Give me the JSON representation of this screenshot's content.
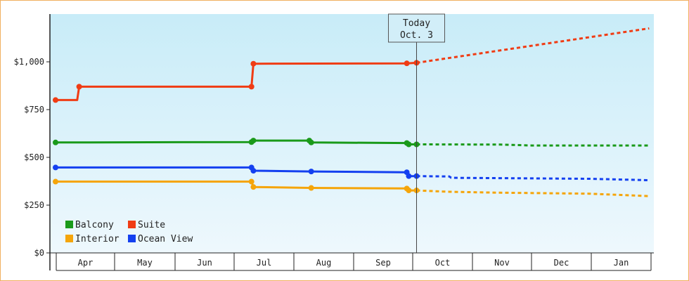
{
  "chart_data": {
    "type": "line",
    "x_unit": "date",
    "ylim": [
      0,
      1250
    ],
    "y_ticks": [
      {
        "value": 0,
        "label": "$0"
      },
      {
        "value": 250,
        "label": "$250"
      },
      {
        "value": 500,
        "label": "$500"
      },
      {
        "value": 750,
        "label": "$750"
      },
      {
        "value": 1000,
        "label": "$1,000"
      }
    ],
    "x_months": [
      "Apr",
      "May",
      "Jun",
      "Jul",
      "Aug",
      "Sep",
      "Oct",
      "Nov",
      "Dec",
      "Jan"
    ],
    "annotation": {
      "line1": "Today",
      "line2": "Oct. 3",
      "x": "Oct 3"
    },
    "legend": {
      "placement": "bottom-left"
    },
    "colors": {
      "Balcony": "#1a9a1a",
      "Suite": "#f03c14",
      "Interior": "#f5a50a",
      "Ocean View": "#1440f0",
      "plot_bg_top": "#c8ecf8",
      "plot_bg_bottom": "#eef8fd"
    },
    "series": [
      {
        "name": "Suite",
        "actual": [
          [
            "Apr 1",
            800
          ],
          [
            "Apr 12",
            800
          ],
          [
            "Apr 13",
            870
          ],
          [
            "Jul 10",
            870
          ],
          [
            "Jul 11",
            990
          ],
          [
            "Sep 28",
            992
          ],
          [
            "Oct 3",
            995
          ]
        ],
        "markers": [
          "Apr 1",
          "Apr 13",
          "Jul 10",
          "Jul 11",
          "Sep 28",
          "Oct 3"
        ],
        "forecast": [
          [
            "Oct 3",
            995
          ],
          [
            "Jan 31",
            1175
          ]
        ]
      },
      {
        "name": "Balcony",
        "actual": [
          [
            "Apr 1",
            578
          ],
          [
            "Jul 10",
            580
          ],
          [
            "Jul 11",
            588
          ],
          [
            "Aug 9",
            588
          ],
          [
            "Aug 10",
            578
          ],
          [
            "Sep 28",
            575
          ],
          [
            "Sep 29",
            568
          ],
          [
            "Oct 3",
            568
          ]
        ],
        "markers": [
          "Apr 1",
          "Jul 10",
          "Jul 11",
          "Aug 9",
          "Aug 10",
          "Sep 28",
          "Sep 29",
          "Oct 3"
        ],
        "forecast": [
          [
            "Oct 3",
            568
          ],
          [
            "Nov 15",
            567
          ],
          [
            "Dec 1",
            562
          ],
          [
            "Jan 31",
            562
          ]
        ]
      },
      {
        "name": "Ocean View",
        "actual": [
          [
            "Apr 1",
            447
          ],
          [
            "Jul 10",
            447
          ],
          [
            "Jul 11",
            430
          ],
          [
            "Aug 10",
            426
          ],
          [
            "Sep 28",
            422
          ],
          [
            "Sep 29",
            402
          ],
          [
            "Oct 3",
            402
          ]
        ],
        "markers": [
          "Apr 1",
          "Jul 10",
          "Jul 11",
          "Aug 10",
          "Sep 28",
          "Sep 29",
          "Oct 3"
        ],
        "forecast": [
          [
            "Oct 3",
            402
          ],
          [
            "Oct 20",
            400
          ],
          [
            "Oct 21",
            393
          ],
          [
            "Dec 31",
            388
          ],
          [
            "Jan 20",
            383
          ],
          [
            "Jan 31",
            380
          ]
        ]
      },
      {
        "name": "Interior",
        "actual": [
          [
            "Apr 1",
            373
          ],
          [
            "Jul 10",
            373
          ],
          [
            "Jul 11",
            345
          ],
          [
            "Aug 10",
            340
          ],
          [
            "Sep 28",
            337
          ],
          [
            "Sep 29",
            327
          ],
          [
            "Oct 3",
            327
          ]
        ],
        "markers": [
          "Apr 1",
          "Jul 10",
          "Jul 11",
          "Aug 10",
          "Sep 28",
          "Sep 29",
          "Oct 3"
        ],
        "forecast": [
          [
            "Oct 3",
            327
          ],
          [
            "Oct 20",
            320
          ],
          [
            "Nov 15",
            315
          ],
          [
            "Dec 31",
            310
          ],
          [
            "Jan 31",
            297
          ]
        ]
      }
    ],
    "legend_rows": [
      [
        {
          "name": "Balcony",
          "color": "#1a9a1a"
        },
        {
          "name": "Suite",
          "color": "#f03c14"
        }
      ],
      [
        {
          "name": "Interior",
          "color": "#f5a50a"
        },
        {
          "name": "Ocean View",
          "color": "#1440f0"
        }
      ]
    ]
  }
}
